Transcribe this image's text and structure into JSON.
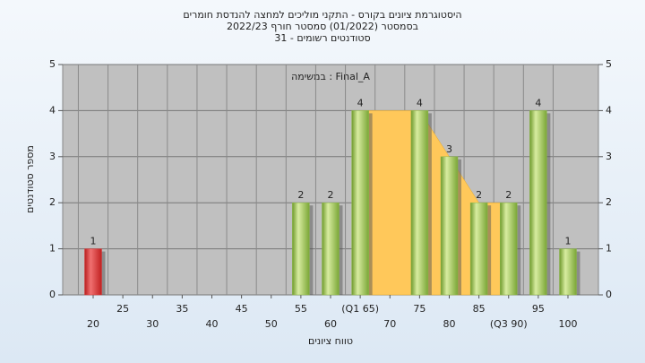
{
  "chart_data": {
    "type": "bar",
    "title": [
      "היסטוגרמת ציונים בקורס - התקני מוליכים למחצה להנדסת חומרים",
      "בסמסטר  (01/2022)  סמסטר חורף  2022/23",
      "סטודנטים רשומים - 31"
    ],
    "annotation": "במשימה : Final_A",
    "x_label": "טווח ציונים",
    "y_label": "מספר סטודנטים",
    "categories": [
      "20",
      "25",
      "30",
      "35",
      "40",
      "45",
      "50",
      "55",
      "60",
      "(Q1 65)",
      "70",
      "75",
      "80",
      "85",
      "(Q3 90)",
      "95",
      "100"
    ],
    "values": [
      1,
      0,
      0,
      0,
      0,
      0,
      0,
      2,
      2,
      4,
      0,
      4,
      3,
      2,
      2,
      4,
      1
    ],
    "colors": [
      "#d83a3a",
      "#8cb84a",
      "#8cb84a",
      "#8cb84a",
      "#8cb84a",
      "#8cb84a",
      "#8cb84a",
      "#8cb84a",
      "#8cb84a",
      "#8cb84a",
      "#8cb84a",
      "#8cb84a",
      "#8cb84a",
      "#8cb84a",
      "#8cb84a",
      "#8cb84a",
      "#8cb84a"
    ],
    "area": {
      "color": "#ffc85a",
      "values": [
        null,
        null,
        null,
        null,
        null,
        null,
        null,
        null,
        null,
        4,
        4,
        4,
        3,
        2,
        2,
        null,
        null
      ]
    },
    "ylim": [
      0,
      5
    ],
    "yticks": [
      0,
      1,
      2,
      3,
      4,
      5
    ],
    "grid": true
  }
}
